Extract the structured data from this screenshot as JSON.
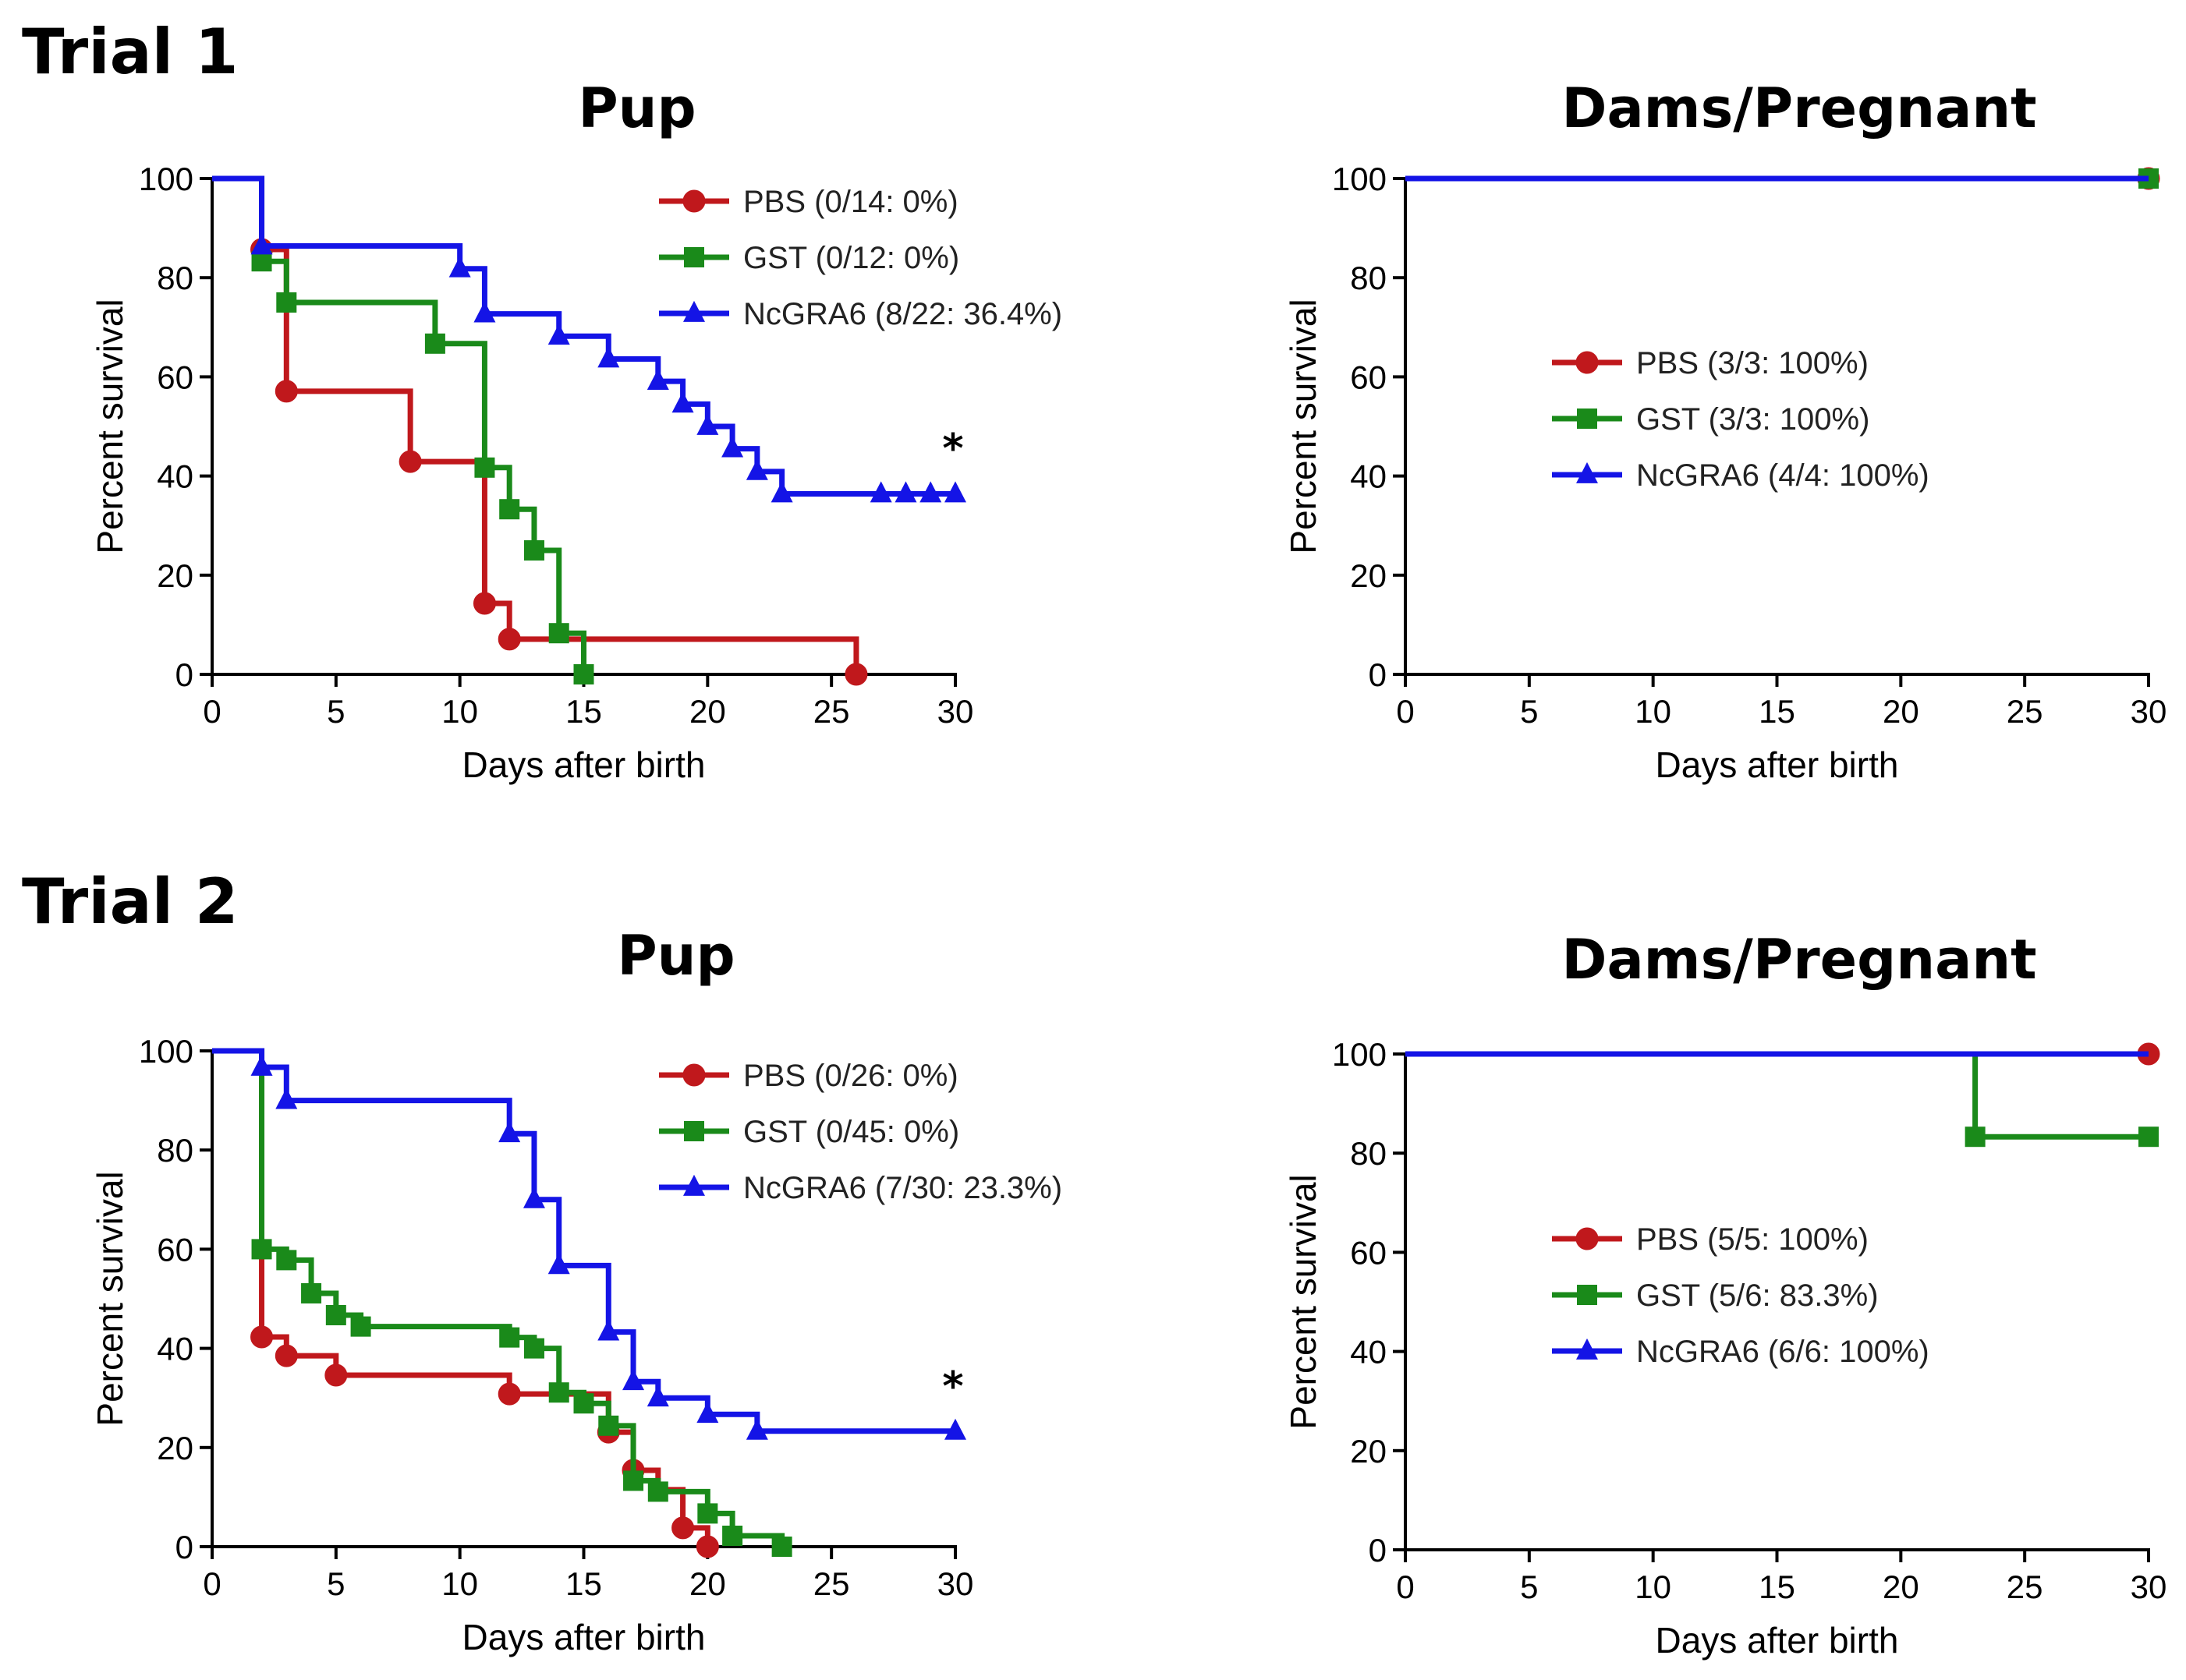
{
  "figure": {
    "trial_titles": [
      "Trial 1",
      "Trial 2"
    ]
  },
  "colors": {
    "PBS": "#c0181c",
    "GST": "#1a8a1a",
    "NcGRA6": "#1414e6"
  },
  "chart_data": [
    {
      "type": "line",
      "subtype": "kaplan-meier",
      "trial": "Trial 1",
      "title": "Pup",
      "xlabel": "Days after birth",
      "ylabel": "Percent survival",
      "xlim": [
        0,
        30
      ],
      "ylim": [
        0,
        100
      ],
      "xticks": [
        "0",
        "5",
        "10",
        "15",
        "20",
        "25",
        "30"
      ],
      "yticks": [
        "0",
        "20",
        "40",
        "60",
        "80",
        "100"
      ],
      "legend_placement": "top-right",
      "annotation": "*",
      "series": [
        {
          "name": "PBS (0/14: 0%)",
          "group": "PBS",
          "marker": "circle",
          "steps": [
            [
              0,
              100
            ],
            [
              2,
              85.7
            ],
            [
              3,
              57.1
            ],
            [
              8,
              42.9
            ],
            [
              11,
              14.3
            ],
            [
              12,
              7.1
            ],
            [
              26,
              0
            ]
          ],
          "markers": [
            [
              2,
              85.7
            ],
            [
              3,
              57.1
            ],
            [
              8,
              42.9
            ],
            [
              11,
              14.3
            ],
            [
              12,
              7.1
            ],
            [
              26,
              0
            ]
          ]
        },
        {
          "name": "GST (0/12: 0%)",
          "group": "GST",
          "marker": "square",
          "steps": [
            [
              0,
              100
            ],
            [
              2,
              83.3
            ],
            [
              3,
              75
            ],
            [
              9,
              66.7
            ],
            [
              11,
              41.7
            ],
            [
              12,
              33.3
            ],
            [
              13,
              25
            ],
            [
              14,
              8.3
            ],
            [
              15,
              0
            ]
          ],
          "markers": [
            [
              2,
              83.3
            ],
            [
              3,
              75
            ],
            [
              9,
              66.7
            ],
            [
              11,
              41.7
            ],
            [
              12,
              33.3
            ],
            [
              13,
              25
            ],
            [
              14,
              8.3
            ],
            [
              15,
              0
            ]
          ]
        },
        {
          "name": "NcGRA6 (8/22: 36.4%)",
          "group": "NcGRA6",
          "marker": "triangle",
          "steps": [
            [
              0,
              100
            ],
            [
              2,
              86.4
            ],
            [
              10,
              81.8
            ],
            [
              11,
              72.7
            ],
            [
              14,
              68.2
            ],
            [
              16,
              63.6
            ],
            [
              18,
              59.1
            ],
            [
              19,
              54.5
            ],
            [
              20,
              50
            ],
            [
              21,
              45.5
            ],
            [
              22,
              40.9
            ],
            [
              23,
              36.4
            ],
            [
              30,
              36.4
            ]
          ],
          "markers": [
            [
              2,
              86.4
            ],
            [
              10,
              81.8
            ],
            [
              11,
              72.7
            ],
            [
              14,
              68.2
            ],
            [
              16,
              63.6
            ],
            [
              18,
              59.1
            ],
            [
              19,
              54.5
            ],
            [
              20,
              50
            ],
            [
              21,
              45.5
            ],
            [
              22,
              40.9
            ],
            [
              23,
              36.4
            ],
            [
              27,
              36.4
            ],
            [
              28,
              36.4
            ],
            [
              29,
              36.4
            ],
            [
              30,
              36.4
            ]
          ]
        }
      ]
    },
    {
      "type": "line",
      "subtype": "kaplan-meier",
      "trial": "Trial 1",
      "title": "Dams/Pregnant",
      "xlabel": "Days after birth",
      "ylabel": "Percent survival",
      "xlim": [
        0,
        30
      ],
      "ylim": [
        0,
        100
      ],
      "xticks": [
        "0",
        "5",
        "10",
        "15",
        "20",
        "25",
        "30"
      ],
      "yticks": [
        "0",
        "20",
        "40",
        "60",
        "80",
        "100"
      ],
      "legend_placement": "center-left",
      "annotation": "",
      "series": [
        {
          "name": "PBS (3/3: 100%)",
          "group": "PBS",
          "marker": "circle",
          "steps": [
            [
              0,
              100
            ],
            [
              30,
              100
            ]
          ],
          "markers": [
            [
              30,
              100
            ]
          ]
        },
        {
          "name": "GST (3/3: 100%)",
          "group": "GST",
          "marker": "square",
          "steps": [
            [
              0,
              100
            ],
            [
              30,
              100
            ]
          ],
          "markers": [
            [
              30,
              100
            ]
          ]
        },
        {
          "name": "NcGRA6 (4/4: 100%)",
          "group": "NcGRA6",
          "marker": "triangle",
          "steps": [
            [
              0,
              100
            ],
            [
              30,
              100
            ]
          ],
          "markers": []
        }
      ]
    },
    {
      "type": "line",
      "subtype": "kaplan-meier",
      "trial": "Trial 2",
      "title": "Pup",
      "xlabel": "Days after birth",
      "ylabel": "Percent survival",
      "xlim": [
        0,
        30
      ],
      "ylim": [
        0,
        100
      ],
      "xticks": [
        "0",
        "5",
        "10",
        "15",
        "20",
        "25",
        "30"
      ],
      "yticks": [
        "0",
        "20",
        "40",
        "60",
        "80",
        "100"
      ],
      "legend_placement": "top-right",
      "annotation": "*",
      "series": [
        {
          "name": "PBS (0/26: 0%)",
          "group": "PBS",
          "marker": "circle",
          "steps": [
            [
              0,
              100
            ],
            [
              2,
              42.3
            ],
            [
              3,
              38.5
            ],
            [
              5,
              34.6
            ],
            [
              12,
              30.8
            ],
            [
              16,
              23.1
            ],
            [
              17,
              15.4
            ],
            [
              18,
              11.5
            ],
            [
              19,
              3.8
            ],
            [
              20,
              0
            ]
          ],
          "markers": [
            [
              2,
              42.3
            ],
            [
              3,
              38.5
            ],
            [
              5,
              34.6
            ],
            [
              12,
              30.8
            ],
            [
              16,
              23.1
            ],
            [
              17,
              15.4
            ],
            [
              19,
              3.8
            ],
            [
              20,
              0
            ]
          ]
        },
        {
          "name": "GST (0/45: 0%)",
          "group": "GST",
          "marker": "square",
          "steps": [
            [
              0,
              100
            ],
            [
              2,
              60
            ],
            [
              3,
              57.8
            ],
            [
              4,
              51.1
            ],
            [
              5,
              46.7
            ],
            [
              6,
              44.4
            ],
            [
              12,
              42.2
            ],
            [
              13,
              40
            ],
            [
              14,
              31.1
            ],
            [
              15,
              28.9
            ],
            [
              16,
              24.4
            ],
            [
              17,
              13.3
            ],
            [
              18,
              11.1
            ],
            [
              20,
              6.7
            ],
            [
              21,
              2.2
            ],
            [
              23,
              0
            ]
          ],
          "markers": [
            [
              2,
              60
            ],
            [
              3,
              57.8
            ],
            [
              4,
              51.1
            ],
            [
              5,
              46.7
            ],
            [
              6,
              44.4
            ],
            [
              12,
              42.2
            ],
            [
              13,
              40
            ],
            [
              14,
              31.1
            ],
            [
              15,
              28.9
            ],
            [
              16,
              24.4
            ],
            [
              17,
              13.3
            ],
            [
              18,
              11.1
            ],
            [
              20,
              6.7
            ],
            [
              21,
              2.2
            ],
            [
              23,
              0
            ]
          ]
        },
        {
          "name": "NcGRA6 (7/30: 23.3%)",
          "group": "NcGRA6",
          "marker": "triangle",
          "steps": [
            [
              0,
              100
            ],
            [
              2,
              96.7
            ],
            [
              3,
              90
            ],
            [
              12,
              83.3
            ],
            [
              13,
              70
            ],
            [
              14,
              56.7
            ],
            [
              16,
              43.3
            ],
            [
              17,
              33.3
            ],
            [
              18,
              30
            ],
            [
              20,
              26.7
            ],
            [
              22,
              23.3
            ],
            [
              30,
              23.3
            ]
          ],
          "markers": [
            [
              2,
              96.7
            ],
            [
              3,
              90
            ],
            [
              12,
              83.3
            ],
            [
              13,
              70
            ],
            [
              14,
              56.7
            ],
            [
              16,
              43.3
            ],
            [
              17,
              33.3
            ],
            [
              18,
              30
            ],
            [
              20,
              26.7
            ],
            [
              22,
              23.3
            ],
            [
              30,
              23.3
            ]
          ]
        }
      ]
    },
    {
      "type": "line",
      "subtype": "kaplan-meier",
      "trial": "Trial 2",
      "title": "Dams/Pregnant",
      "xlabel": "Days after birth",
      "ylabel": "Percent survival",
      "xlim": [
        0,
        30
      ],
      "ylim": [
        0,
        100
      ],
      "xticks": [
        "0",
        "5",
        "10",
        "15",
        "20",
        "25",
        "30"
      ],
      "yticks": [
        "0",
        "20",
        "40",
        "60",
        "80",
        "100"
      ],
      "legend_placement": "center-left",
      "annotation": "",
      "series": [
        {
          "name": "PBS (5/5: 100%)",
          "group": "PBS",
          "marker": "circle",
          "steps": [
            [
              0,
              100
            ],
            [
              30,
              100
            ]
          ],
          "markers": [
            [
              30,
              100
            ]
          ]
        },
        {
          "name": "GST (5/6: 83.3%)",
          "group": "GST",
          "marker": "square",
          "steps": [
            [
              0,
              100
            ],
            [
              23,
              83.3
            ],
            [
              30,
              83.3
            ]
          ],
          "markers": [
            [
              23,
              83.3
            ],
            [
              30,
              83.3
            ]
          ]
        },
        {
          "name": "NcGRA6 (6/6: 100%)",
          "group": "NcGRA6",
          "marker": "triangle",
          "steps": [
            [
              0,
              100
            ],
            [
              30,
              100
            ]
          ],
          "markers": []
        }
      ]
    }
  ]
}
